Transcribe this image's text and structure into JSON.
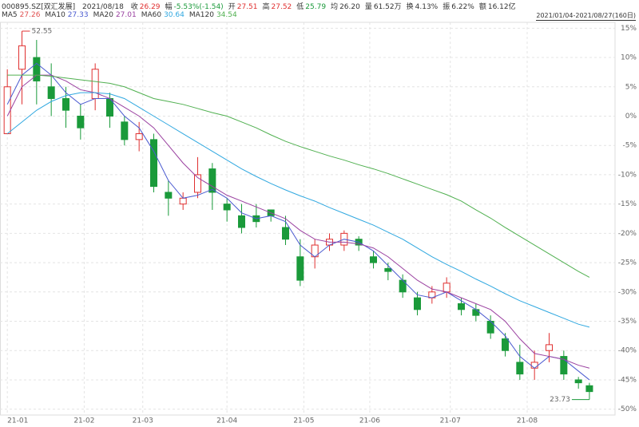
{
  "header": {
    "code": "000895.SZ[双汇发展]",
    "date": "2021/08/18",
    "fields": [
      {
        "label": "收",
        "value": "26.29",
        "color": "#e03030"
      },
      {
        "label": "幅",
        "value": "-5.53%(-1.54)",
        "color": "#1a9a3a"
      },
      {
        "label": "开",
        "value": "27.51",
        "color": "#e03030"
      },
      {
        "label": "高",
        "value": "27.52",
        "color": "#e03030"
      },
      {
        "label": "低",
        "value": "25.79",
        "color": "#1a9a3a"
      },
      {
        "label": "均",
        "value": "26.20",
        "color": "#333333"
      },
      {
        "label": "量",
        "value": "61.52万",
        "color": "#333333"
      },
      {
        "label": "换",
        "value": "4.13%",
        "color": "#333333"
      },
      {
        "label": "振",
        "value": "6.22%",
        "color": "#333333"
      },
      {
        "label": "额",
        "value": "16.12亿",
        "color": "#333333"
      }
    ],
    "range": "2021/01/04-2021/08/27(160日)"
  },
  "chart_data": {
    "type": "candlestick",
    "ma_legend": [
      {
        "name": "MA5",
        "value": 27.26,
        "color": "#e05050"
      },
      {
        "name": "MA10",
        "value": 27.33,
        "color": "#4a5ad0"
      },
      {
        "name": "MA20",
        "value": 27.01,
        "color": "#9a40a0"
      },
      {
        "name": "MA60",
        "value": 30.64,
        "color": "#30a8e0"
      },
      {
        "name": "MA120",
        "value": 34.54,
        "color": "#50b050"
      }
    ],
    "candles": {
      "x": [
        0,
        4,
        8,
        12,
        16,
        20,
        24,
        28,
        32,
        36,
        40,
        44,
        48,
        52,
        56,
        60,
        64,
        68,
        72,
        76,
        80,
        84,
        88,
        92,
        96,
        100,
        104,
        108,
        112,
        116,
        120,
        124,
        128,
        132,
        136,
        140,
        144,
        148,
        152,
        156,
        159
      ],
      "open": [
        -3,
        8,
        10,
        5,
        3,
        0,
        3,
        3,
        -1,
        -4,
        -4,
        -13,
        -15,
        -13,
        -9,
        -15,
        -17,
        -17,
        -16,
        -19,
        -24,
        -24,
        -22,
        -22,
        -21,
        -24,
        -26,
        -28,
        -31,
        -31,
        -30,
        -32,
        -33,
        -35,
        -38,
        -42,
        -43,
        -40,
        -41,
        -45,
        -46
      ],
      "close": [
        5,
        12,
        6,
        3,
        1,
        -2,
        8,
        0,
        -4,
        -3,
        -12,
        -14,
        -14,
        -10,
        -13,
        -16,
        -19,
        -18,
        -17,
        -21,
        -28,
        -22,
        -21,
        -20,
        -22,
        -25,
        -26.5,
        -30,
        -33,
        -30,
        -28.5,
        -33,
        -34,
        -37,
        -40,
        -44,
        -42,
        -39,
        -44,
        -45.5,
        -47
      ],
      "high": [
        8,
        14.5,
        13,
        9,
        5,
        2,
        9,
        4,
        0,
        -1,
        -3,
        -11,
        -13,
        -7,
        -8,
        -14,
        -15,
        -15,
        -16,
        -17,
        -21,
        -21,
        -20,
        -19.5,
        -20.5,
        -23,
        -25,
        -27,
        -30,
        -29,
        -27.5,
        -31,
        -32,
        -34,
        -37,
        -39,
        -40,
        -37,
        -40,
        -44.5,
        -45.5
      ],
      "low": [
        -3,
        2,
        2,
        0,
        -2,
        -4,
        1,
        -2,
        -5,
        -6,
        -13,
        -17,
        -16,
        -14,
        -16,
        -18,
        -20,
        -19,
        -18,
        -22,
        -29,
        -26,
        -23,
        -23,
        -23,
        -26,
        -28,
        -31,
        -34,
        -32,
        -31,
        -34,
        -35,
        -38,
        -41,
        -45,
        -45,
        -42,
        -45,
        -46.5,
        -47
      ],
      "up_color": "#e03030",
      "down_color": "#1a9a3a"
    },
    "series": [
      {
        "name": "MA10",
        "color": "#4a5ad0",
        "values": [
          2,
          7,
          9,
          7,
          4,
          2,
          3,
          3,
          0,
          -2,
          -6,
          -11,
          -14,
          -13.5,
          -12.5,
          -14,
          -16.5,
          -17.5,
          -17,
          -18,
          -22,
          -24,
          -22,
          -21,
          -21.5,
          -23,
          -25.5,
          -28,
          -30.5,
          -31,
          -30,
          -31.5,
          -33,
          -35,
          -37.5,
          -41,
          -43,
          -41,
          -41.5,
          -43.5,
          -45
        ]
      },
      {
        "name": "MA20",
        "color": "#9a40a0",
        "values": [
          0,
          5,
          7,
          7,
          6,
          4.5,
          4,
          3,
          1.5,
          0,
          -2,
          -5,
          -8,
          -10.5,
          -12,
          -13.5,
          -14.5,
          -15.5,
          -16.5,
          -17.5,
          -19.5,
          -21,
          -21.5,
          -21.5,
          -21.8,
          -22.5,
          -24,
          -26,
          -28,
          -29.5,
          -30,
          -31,
          -32,
          -33,
          -35,
          -38,
          -40.5,
          -41,
          -41.5,
          -42.5,
          -43
        ]
      },
      {
        "name": "MA60",
        "color": "#30a8e0",
        "values": [
          -3,
          -1,
          1,
          2.5,
          3.5,
          4,
          4,
          3.8,
          3,
          1.5,
          0,
          -1.5,
          -3,
          -4.5,
          -6,
          -7.5,
          -9,
          -10.3,
          -11.5,
          -12.6,
          -13.6,
          -14.5,
          -15.6,
          -16.6,
          -17.6,
          -18.6,
          -19.8,
          -21,
          -22.5,
          -24,
          -25.3,
          -26.5,
          -27.8,
          -29,
          -30.3,
          -31.5,
          -32.5,
          -33.5,
          -34.5,
          -35.5,
          -36
        ]
      },
      {
        "name": "MA120",
        "color": "#50b050",
        "values": [
          7,
          7,
          7,
          6.8,
          6.5,
          6.2,
          5.9,
          5.6,
          5,
          4,
          3,
          2.5,
          2,
          1.3,
          0.6,
          0,
          -1,
          -2,
          -3.2,
          -4.3,
          -5.2,
          -6,
          -6.8,
          -7.5,
          -8.3,
          -9,
          -9.8,
          -10.7,
          -11.6,
          -12.5,
          -13.4,
          -14.5,
          -16,
          -17.4,
          -19,
          -20.5,
          -22,
          -23.5,
          -25,
          -26.5,
          -27.5
        ]
      }
    ],
    "max_label": "52.55",
    "min_label": "23.73",
    "xlim": [
      -2,
      166
    ],
    "xticks": [
      {
        "value": 0,
        "label": "21-01"
      },
      {
        "value": 21,
        "label": "21-02"
      },
      {
        "value": 37,
        "label": "21-03"
      },
      {
        "value": 60,
        "label": "21-04"
      },
      {
        "value": 81,
        "label": "21-05"
      },
      {
        "value": 99,
        "label": "21-06"
      },
      {
        "value": 121,
        "label": "21-07"
      },
      {
        "value": 142,
        "label": "21-08"
      }
    ],
    "ylim": [
      -51,
      16
    ],
    "yticks": [
      {
        "value": 15,
        "label": "15%"
      },
      {
        "value": 10,
        "label": "10%"
      },
      {
        "value": 5,
        "label": "5%"
      },
      {
        "value": 0,
        "label": "0%"
      },
      {
        "value": -5,
        "label": "-5%"
      },
      {
        "value": -10,
        "label": "-10%"
      },
      {
        "value": -15,
        "label": "-15%"
      },
      {
        "value": -20,
        "label": "-20%"
      },
      {
        "value": -25,
        "label": "-25%"
      },
      {
        "value": -30,
        "label": "-30%"
      },
      {
        "value": -35,
        "label": "-35%"
      },
      {
        "value": -40,
        "label": "-40%"
      },
      {
        "value": -45,
        "label": "-45%"
      },
      {
        "value": -50,
        "label": "-50%"
      }
    ],
    "grid": true
  }
}
